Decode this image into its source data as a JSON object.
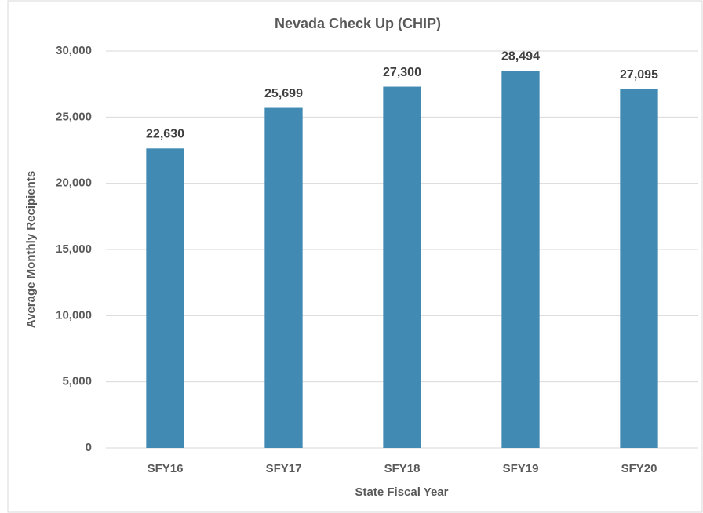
{
  "chart_data": {
    "type": "bar",
    "title": "Nevada Check Up (CHIP)",
    "x_label": "State Fiscal Year",
    "y_label": "Average Monthly Recipients",
    "categories": [
      "SFY16",
      "SFY17",
      "SFY18",
      "SFY19",
      "SFY20"
    ],
    "values": [
      22630,
      25699,
      27300,
      28494,
      27095
    ],
    "value_labels": [
      "22,630",
      "25,699",
      "27,300",
      "28,494",
      "27,095"
    ],
    "color": "#418ab3",
    "ylim": [
      0,
      30000
    ],
    "yticks": [
      0,
      {
        "value": 5000,
        "label": "5,000"
      },
      {
        "value": 10000,
        "label": "10,000"
      },
      {
        "value": 15000,
        "label": "15,000"
      },
      {
        "value": 20000,
        "label": "20,000"
      },
      {
        "value": 25000,
        "label": "25,000"
      },
      {
        "value": 30000,
        "label": "30,000"
      }
    ],
    "grid": true
  }
}
